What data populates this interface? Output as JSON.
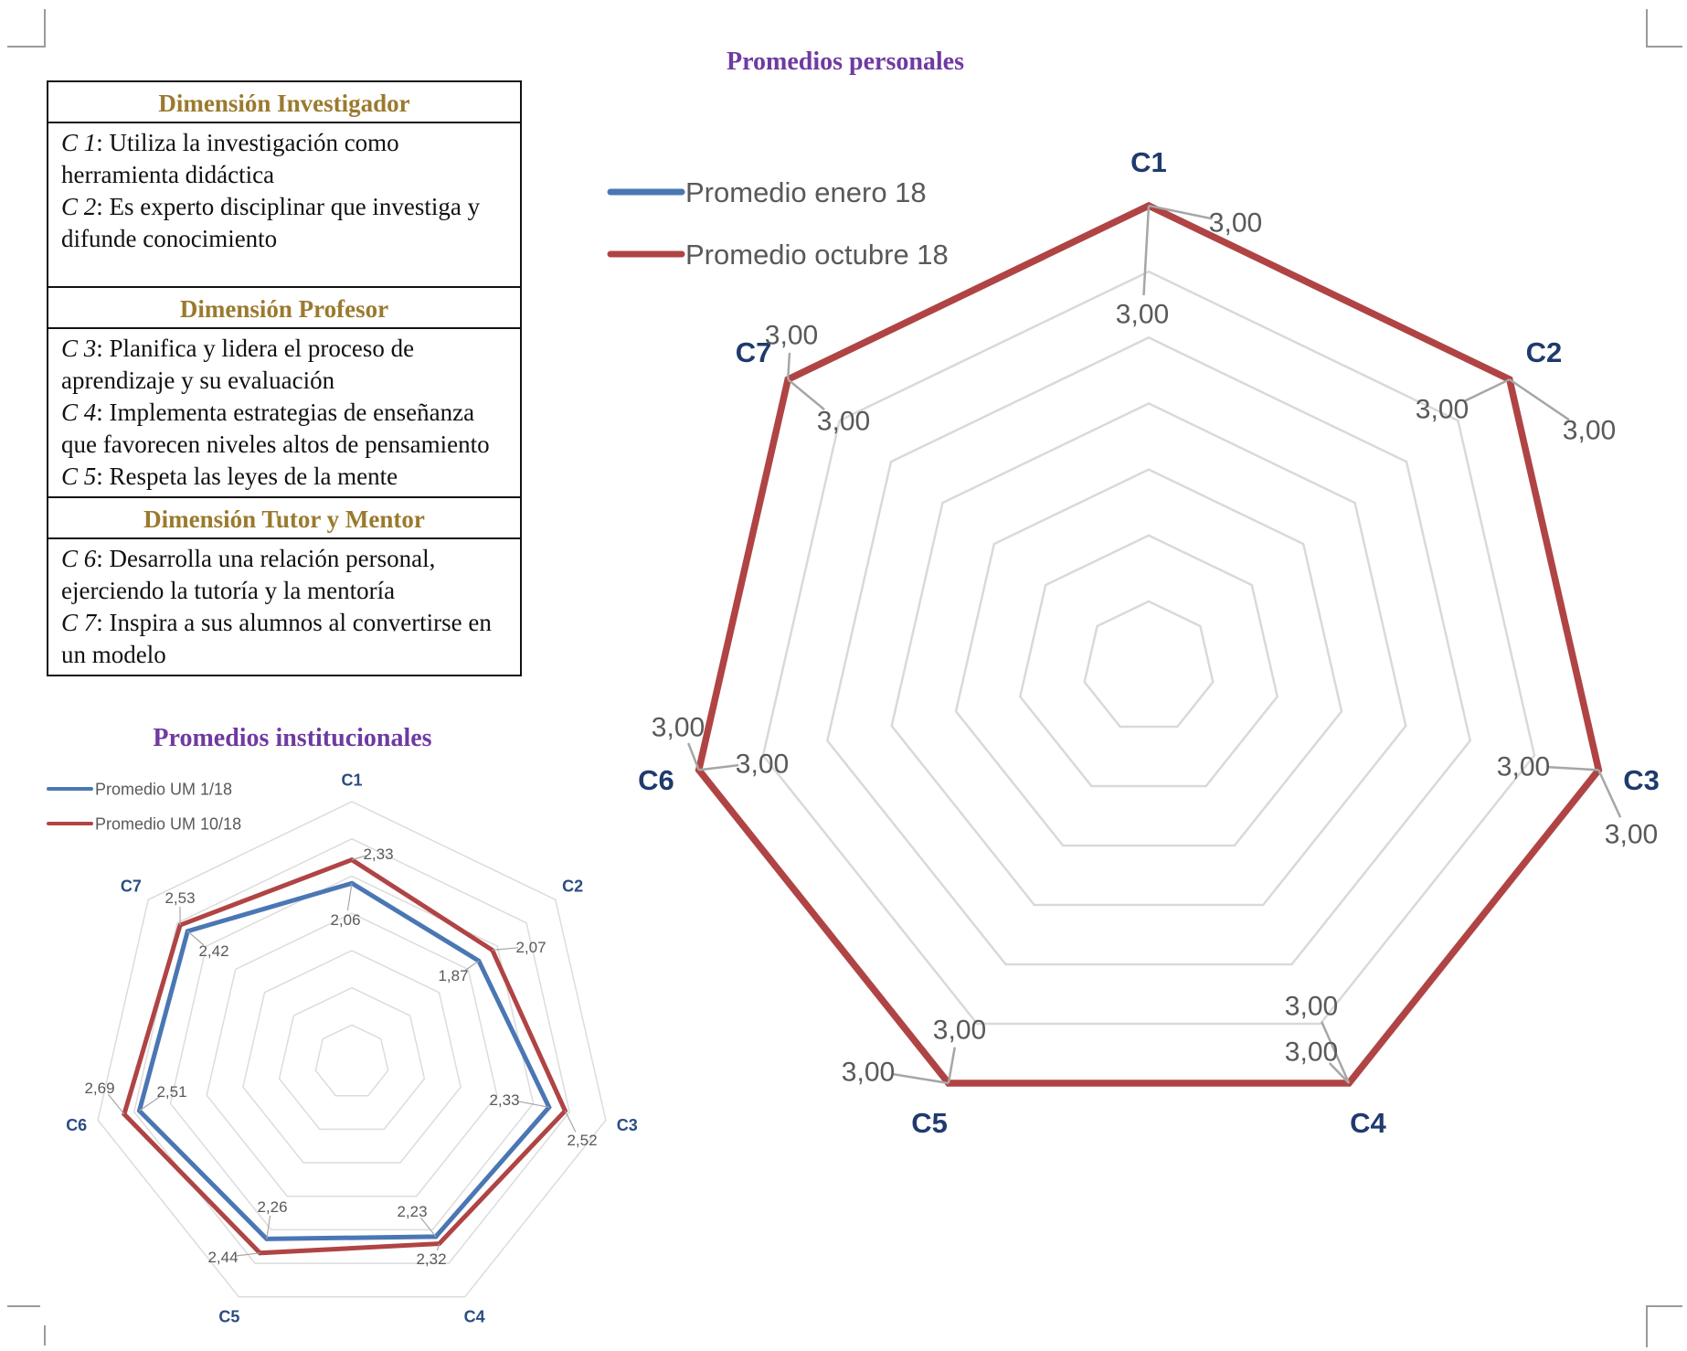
{
  "definitions": [
    {
      "title": "Dimensión Investigador",
      "items": [
        {
          "code": "C 1",
          "text": ": Utiliza la investigación como herramienta didáctica"
        },
        {
          "code": "C 2",
          "text": ": Es experto disciplinar que investiga y difunde conocimiento"
        }
      ]
    },
    {
      "title": "Dimensión Profesor",
      "items": [
        {
          "code": "C 3",
          "text": ": Planifica y lidera el proceso de aprendizaje y su evaluación"
        },
        {
          "code": "C 4",
          "text": ": Implementa estrategias de enseñanza que favorecen niveles altos de pensamiento"
        },
        {
          "code": "C 5",
          "text": ": Respeta las leyes de la mente"
        }
      ]
    },
    {
      "title": "Dimensión Tutor y Mentor",
      "items": [
        {
          "code": "C 6",
          "text": ": Desarrolla una relación personal, ejerciendo la tutoría y la mentoría"
        },
        {
          "code": "C 7",
          "text": ": Inspira a sus alumnos al convertirse en un modelo"
        }
      ]
    }
  ],
  "chart_data": [
    {
      "type": "radar",
      "title": "Promedios personales",
      "categories": [
        "C1",
        "C2",
        "C3",
        "C4",
        "C5",
        "C6",
        "C7"
      ],
      "grid": true,
      "legend": "top-left",
      "series": [
        {
          "name": "Promedio enero 18",
          "color": "#4a77b4",
          "values": [
            3.0,
            3.0,
            3.0,
            3.0,
            3.0,
            3.0,
            3.0
          ],
          "labels": [
            "3,00",
            "3,00",
            "3,00",
            "3,00",
            "3,00",
            "3,00",
            "3,00"
          ]
        },
        {
          "name": "Promedio octubre 18",
          "color": "#b04444",
          "values": [
            3.0,
            3.0,
            3.0,
            3.0,
            3.0,
            3.0,
            3.0
          ],
          "labels": [
            "3,00",
            "3,00",
            "3,00",
            "3,00",
            "3,00",
            "3,00",
            "3,00"
          ]
        }
      ]
    },
    {
      "type": "radar",
      "title": "Promedios institucionales",
      "categories": [
        "C1",
        "C2",
        "C3",
        "C4",
        "C5",
        "C6",
        "C7"
      ],
      "grid": true,
      "legend": "top-left",
      "series": [
        {
          "name": "Promedio UM 1/18",
          "color": "#4a77b4",
          "values": [
            2.06,
            1.87,
            2.33,
            2.23,
            2.26,
            2.51,
            2.42
          ],
          "labels": [
            "2,06",
            "1,87",
            "2,33",
            "2,23",
            "2,26",
            "2,51",
            "2,42"
          ]
        },
        {
          "name": "Promedio UM 10/18",
          "color": "#b04444",
          "values": [
            2.33,
            2.07,
            2.52,
            2.32,
            2.44,
            2.69,
            2.53
          ],
          "labels": [
            "2,33",
            "2,07",
            "2,52",
            "2,32",
            "2,44",
            "2,69",
            "2,53"
          ]
        }
      ]
    }
  ]
}
